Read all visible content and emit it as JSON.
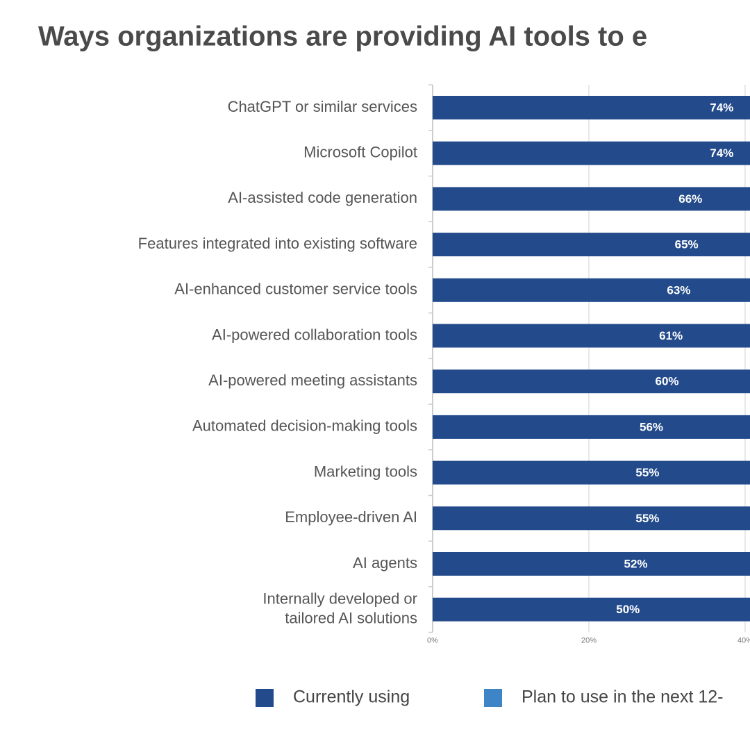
{
  "chart_data": {
    "type": "hbar-stacked",
    "title": "Ways organizations are providing AI tools to e",
    "categories": [
      "ChatGPT or similar services",
      "Microsoft Copilot",
      "AI-assisted code generation",
      "Features integrated into existing software",
      "AI-enhanced customer service tools",
      "AI-powered collaboration tools",
      "AI-powered meeting assistants",
      "Automated decision-making tools",
      "Marketing tools",
      "Employee-driven AI",
      "AI agents",
      "Internally developed or\ntailored AI solutions"
    ],
    "series": [
      {
        "name": "Currently using",
        "color": "#234b8c",
        "values": [
          74,
          74,
          66,
          65,
          63,
          61,
          60,
          56,
          55,
          55,
          52,
          50
        ],
        "value_labels": [
          "74%",
          "74%",
          "66%",
          "65%",
          "63%",
          "61%",
          "60%",
          "56%",
          "55%",
          "55%",
          "52%",
          "50%"
        ]
      },
      {
        "name": "Plan to use in the next 12-",
        "color": "#3d85c6",
        "values": [
          null,
          null,
          null,
          null,
          null,
          null,
          null,
          null,
          null,
          null,
          null,
          null
        ]
      }
    ],
    "xlim": [
      0,
      100
    ],
    "xticks": [
      {
        "value": 0,
        "label": "0%"
      },
      {
        "value": 20,
        "label": "20%"
      },
      {
        "value": 40,
        "label": "40%"
      }
    ],
    "grid": true
  }
}
